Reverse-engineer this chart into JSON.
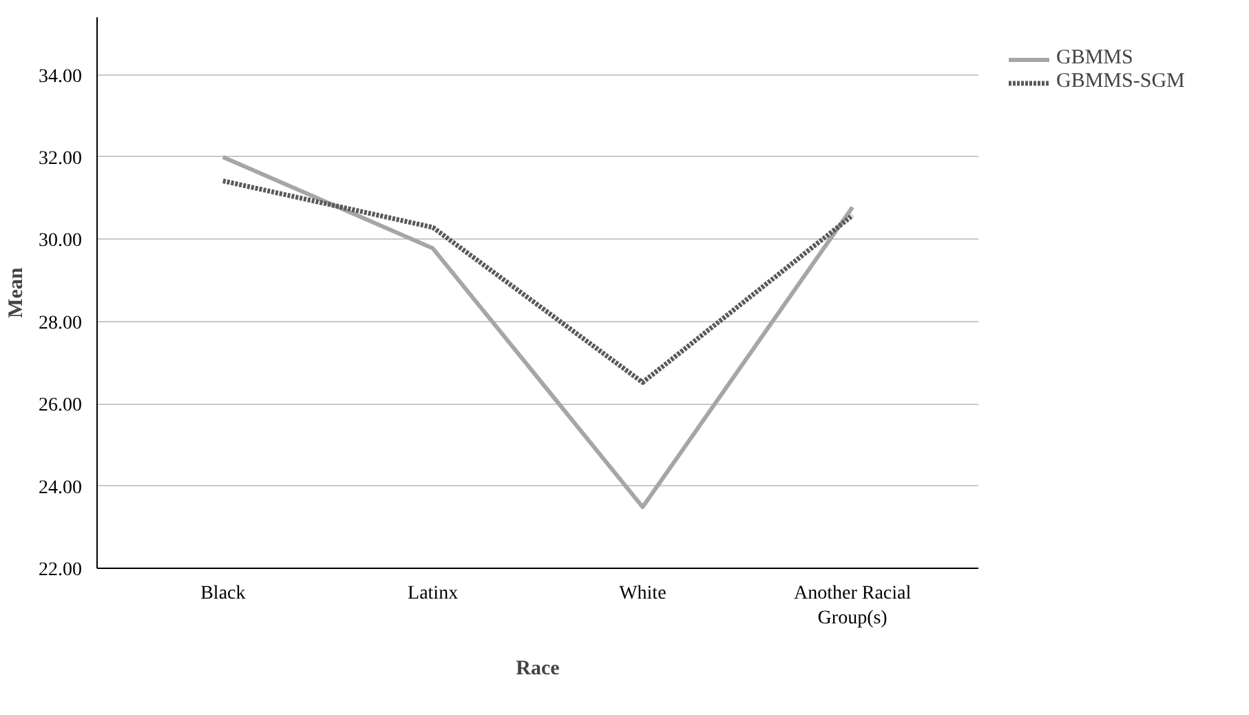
{
  "chart_data": {
    "type": "line",
    "xlabel": "Race",
    "ylabel": "Mean",
    "categories": [
      "Black",
      "Latinx",
      "White",
      "Another Racial\nGroup(s)"
    ],
    "series": [
      {
        "name": "GBMMS",
        "color": "#a6a6a6",
        "line_style": "solid",
        "values": [
          32.0,
          29.78,
          23.49,
          30.78
        ]
      },
      {
        "name": "GBMMS-SGM",
        "color": "#595959",
        "line_style": "dotted",
        "values": [
          31.42,
          30.29,
          26.52,
          30.58
        ]
      }
    ],
    "ylim": [
      22,
      35.4
    ],
    "yticks": [
      {
        "value": 22,
        "label": "22.00"
      },
      {
        "value": 24,
        "label": "24.00"
      },
      {
        "value": 26,
        "label": "26.00"
      },
      {
        "value": 28,
        "label": "28.00"
      },
      {
        "value": 30,
        "label": "30.00"
      },
      {
        "value": 32,
        "label": "32.00"
      },
      {
        "value": 34,
        "label": "34.00"
      }
    ],
    "grid": "y",
    "legend": "top right",
    "marker": "none"
  }
}
